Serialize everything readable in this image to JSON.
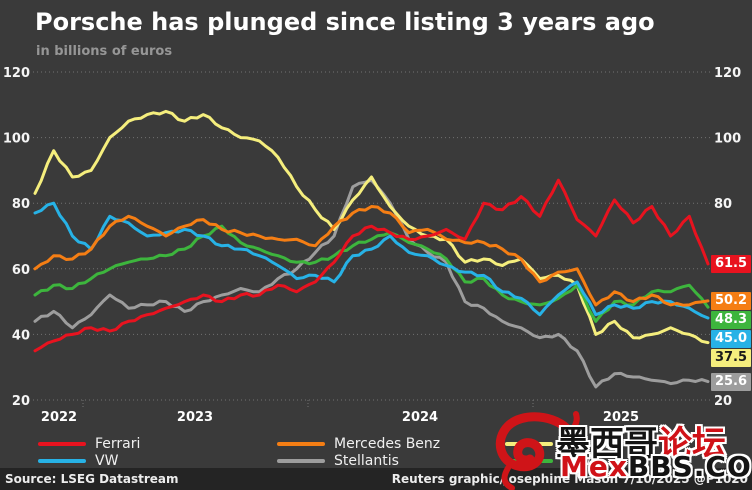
{
  "header": {
    "title": "Porsche has plunged since listing 3 years ago",
    "subtitle": "in billions of euros"
  },
  "footer": {
    "source": "Source: LSEG Datastream",
    "credit": "Reuters graphic/Josephine Mason 7/10/2025 @P1020"
  },
  "watermark": {
    "cn_black": "墨西哥",
    "cn_red": "论坛",
    "en_red": "Mex",
    "en_black": "BBS.COM",
    "logo": "dragon-icon"
  },
  "colors": {
    "background": "#3a3a3a",
    "footer_band": "#242424",
    "grid": "#717171",
    "axis_text": "#f5f5f5",
    "subtitle_text": "#969696"
  },
  "chart_data": {
    "type": "line",
    "title": "Porsche has plunged since listing 3 years ago",
    "unit": "billions of euros",
    "x_description": "monthly, Oct 2022 to Oct 2025",
    "x_tick_labels": [
      "2022",
      "2023",
      "2024",
      "2025"
    ],
    "y_ticks": [
      20,
      40,
      60,
      80,
      100,
      120
    ],
    "ylim": [
      20,
      120
    ],
    "grid": "dotted-horizontal",
    "legend_position": "bottom",
    "legend_order": [
      [
        "Ferrari",
        "VW"
      ],
      [
        "Mercedes Benz",
        "Stellantis"
      ],
      [
        "Porsche",
        "BMW"
      ]
    ],
    "months": [
      "2022-10",
      "2022-11",
      "2022-12",
      "2023-01",
      "2023-02",
      "2023-03",
      "2023-04",
      "2023-05",
      "2023-06",
      "2023-07",
      "2023-08",
      "2023-09",
      "2023-10",
      "2023-11",
      "2023-12",
      "2024-01",
      "2024-02",
      "2024-03",
      "2024-04",
      "2024-05",
      "2024-06",
      "2024-07",
      "2024-08",
      "2024-09",
      "2024-10",
      "2024-11",
      "2024-12",
      "2025-01",
      "2025-02",
      "2025-03",
      "2025-04",
      "2025-05",
      "2025-06",
      "2025-07",
      "2025-08",
      "2025-09",
      "2025-10"
    ],
    "series": [
      {
        "name": "Stellantis",
        "color": "#9d9d9d",
        "end_label": "25.6",
        "end_label_text_color": "#ffffff",
        "values": [
          44,
          47,
          42,
          46,
          52,
          48,
          49,
          50,
          47,
          50,
          52,
          54,
          53,
          57,
          60,
          65,
          70,
          85,
          87,
          80,
          69,
          65,
          62,
          50,
          48,
          44,
          42,
          39,
          40,
          35,
          24,
          28,
          27,
          26,
          25,
          26,
          25.6
        ]
      },
      {
        "name": "Porsche",
        "color": "#f5ee7d",
        "end_label": "37.5",
        "end_label_text_color": "#1a1a1a",
        "values": [
          83,
          96,
          88,
          90,
          100,
          105,
          107,
          108,
          105,
          107,
          103,
          100,
          99,
          94,
          85,
          78,
          72,
          81,
          88,
          79,
          73,
          70,
          69,
          62,
          63,
          61,
          63,
          57,
          58,
          55,
          40,
          44,
          39,
          40,
          42,
          40,
          37.5
        ]
      },
      {
        "name": "BMW",
        "color": "#3db53d",
        "end_label": "48.3",
        "end_label_text_color": "#ffffff",
        "values": [
          52,
          55,
          54,
          57,
          60,
          62,
          63,
          64,
          66,
          70,
          73,
          68,
          66,
          64,
          62,
          62,
          64,
          67,
          69,
          71,
          68,
          66,
          63,
          56,
          57,
          52,
          50,
          49,
          51,
          55,
          44,
          50,
          49,
          53,
          53,
          55,
          48.3
        ]
      },
      {
        "name": "VW",
        "color": "#27b2e6",
        "end_label": "45.0",
        "end_label_text_color": "#ffffff",
        "values": [
          77,
          80,
          70,
          66,
          76,
          74,
          70,
          71,
          72,
          70,
          67,
          66,
          64,
          61,
          57,
          58,
          56,
          64,
          66,
          70,
          65,
          64,
          61,
          59,
          58,
          53,
          51,
          46,
          52,
          56,
          46,
          49,
          48,
          50,
          50,
          48,
          45.0
        ]
      },
      {
        "name": "Mercedes Benz",
        "color": "#f57e14",
        "end_label": "50.2",
        "end_label_text_color": "#ffffff",
        "values": [
          60,
          64,
          63,
          66,
          73,
          76,
          73,
          70,
          73,
          75,
          72,
          71,
          70,
          69,
          69,
          67,
          73,
          77,
          79,
          77,
          71,
          72,
          69,
          68,
          68,
          66,
          63,
          56,
          59,
          60,
          49,
          53,
          50,
          52,
          49,
          49,
          50.2
        ]
      },
      {
        "name": "Ferrari",
        "color": "#e8131f",
        "end_label": "61.5",
        "end_label_text_color": "#ffffff",
        "values": [
          35,
          38,
          40,
          42,
          41,
          44,
          46,
          48,
          50,
          52,
          50,
          52,
          52,
          55,
          53,
          56,
          62,
          70,
          73,
          71,
          69,
          70,
          72,
          69,
          80,
          78,
          82,
          76,
          87,
          75,
          70,
          81,
          74,
          79,
          70,
          76,
          61.5
        ]
      }
    ]
  }
}
